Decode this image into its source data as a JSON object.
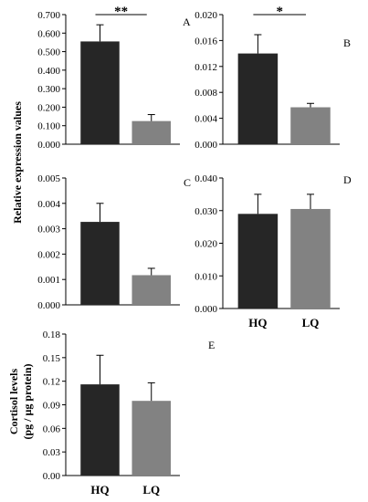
{
  "figure": {
    "ylabel_top": "Relative expression values",
    "ylabel_bottom_line1": "Cortisol  levels",
    "ylabel_bottom_line2": "(pg / µg  protein)"
  },
  "colors": {
    "HQ": "#262626",
    "LQ": "#828282",
    "axis": "#000000"
  },
  "chart_data": [
    {
      "type": "bar",
      "panel": "A",
      "categories": [
        "HQ",
        "LQ"
      ],
      "values": [
        0.555,
        0.125
      ],
      "errors": [
        0.09,
        0.035
      ],
      "ylim": [
        0,
        0.7
      ],
      "yticks": [
        "0.000",
        "0.100",
        "0.200",
        "0.300",
        "0.400",
        "0.500",
        "0.600",
        "0.700"
      ],
      "significance": "**",
      "show_categories": false
    },
    {
      "type": "bar",
      "panel": "B",
      "categories": [
        "HQ",
        "LQ"
      ],
      "values": [
        0.014,
        0.0057
      ],
      "errors": [
        0.0029,
        0.0006
      ],
      "ylim": [
        0,
        0.02
      ],
      "yticks": [
        "0.000",
        "0.004",
        "0.008",
        "0.012",
        "0.016",
        "0.020"
      ],
      "significance": "*",
      "show_categories": false
    },
    {
      "type": "bar",
      "panel": "C",
      "categories": [
        "HQ",
        "LQ"
      ],
      "values": [
        0.00327,
        0.00117
      ],
      "errors": [
        0.00073,
        0.00027
      ],
      "ylim": [
        0,
        0.005
      ],
      "yticks": [
        "0.000",
        "0.001",
        "0.002",
        "0.003",
        "0.004",
        "0.005"
      ],
      "significance": "",
      "show_categories": false
    },
    {
      "type": "bar",
      "panel": "D",
      "categories": [
        "HQ",
        "LQ"
      ],
      "values": [
        0.029,
        0.0305
      ],
      "errors": [
        0.006,
        0.0045
      ],
      "ylim": [
        0,
        0.04
      ],
      "yticks": [
        "0.000",
        "0.010",
        "0.020",
        "0.030",
        "0.040"
      ],
      "significance": "",
      "show_categories": true
    },
    {
      "type": "bar",
      "panel": "E",
      "categories": [
        "HQ",
        "LQ"
      ],
      "values": [
        0.116,
        0.095
      ],
      "errors": [
        0.037,
        0.023
      ],
      "ylim": [
        0,
        0.18
      ],
      "yticks": [
        "0.00",
        "0.03",
        "0.06",
        "0.09",
        "0.12",
        "0.15",
        "0.18"
      ],
      "significance": "",
      "show_categories": true
    }
  ]
}
